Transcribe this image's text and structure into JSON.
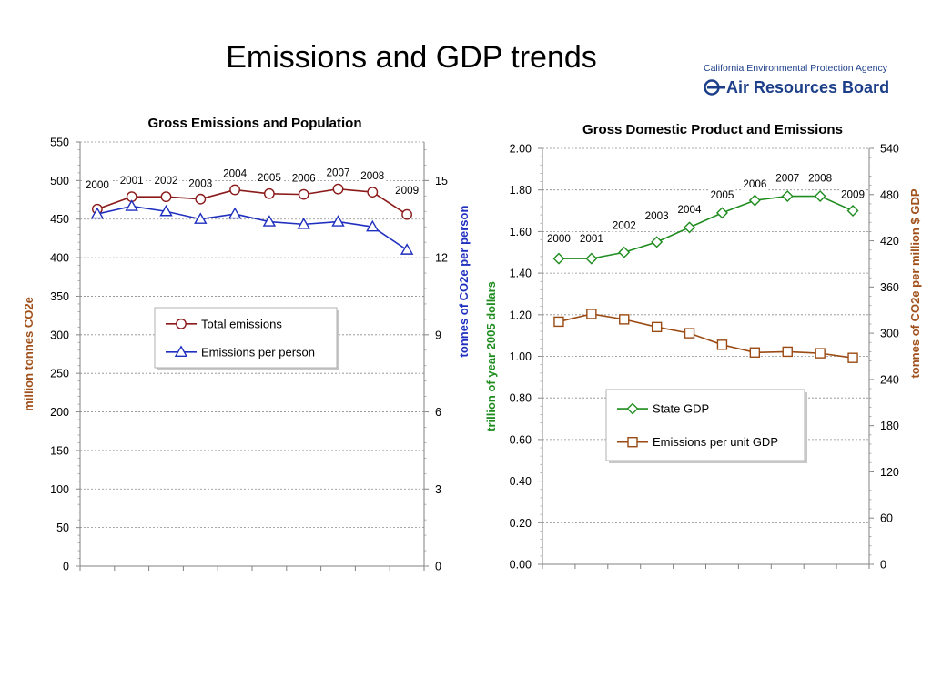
{
  "slide_title": "Emissions and GDP trends",
  "logo": {
    "agency": "California Environmental Protection Agency",
    "board": "Air Resources Board"
  },
  "chart_data": [
    {
      "type": "line",
      "title": "Gross Emissions and Population",
      "ylabel_left": "million tonnes CO2e",
      "ylabel_right": "tonnes of CO2e per person",
      "ylim_left": [
        0,
        550
      ],
      "yticks_left": [
        "0",
        "50",
        "100",
        "150",
        "200",
        "250",
        "300",
        "350",
        "400",
        "450",
        "500",
        "550"
      ],
      "ylim_right": [
        0,
        16.5
      ],
      "yticks_right": [
        "0",
        "3",
        "6",
        "9",
        "12",
        "15"
      ],
      "grid": true,
      "legend_position": "center",
      "point_labels": [
        "2000",
        "2001",
        "2002",
        "2003",
        "2004",
        "2005",
        "2006",
        "2007",
        "2008",
        "2009"
      ],
      "series": [
        {
          "name": "Total emissions",
          "axis": "left",
          "color": "#8b1a1a",
          "marker": "circle",
          "values": [
            463,
            479,
            479,
            476,
            488,
            483,
            482,
            489,
            485,
            456
          ]
        },
        {
          "name": "Emissions per person",
          "axis": "right",
          "color": "#1f2fbf",
          "marker": "triangle",
          "values": [
            13.7,
            14.0,
            13.8,
            13.5,
            13.7,
            13.4,
            13.3,
            13.4,
            13.2,
            12.3
          ]
        }
      ]
    },
    {
      "type": "line",
      "title": "Gross Domestic Product and Emissions",
      "ylabel_left": "trillion of year 2005 dollars",
      "ylabel_right": "tonnes of CO2e per million $ GDP",
      "ylim_left": [
        0,
        2.0
      ],
      "yticks_left": [
        "0.00",
        "0.20",
        "0.40",
        "0.60",
        "0.80",
        "1.00",
        "1.20",
        "1.40",
        "1.60",
        "1.80",
        "2.00"
      ],
      "ylim_right": [
        0,
        540
      ],
      "yticks_right": [
        "0",
        "60",
        "120",
        "180",
        "240",
        "300",
        "360",
        "420",
        "480",
        "540"
      ],
      "grid": true,
      "legend_position": "center-right",
      "point_labels": [
        "2000",
        "2001",
        "2002",
        "2003",
        "2004",
        "2005",
        "2006",
        "2007",
        "2008",
        "2009"
      ],
      "series": [
        {
          "name": "State GDP",
          "axis": "left",
          "color": "#1e8c1e",
          "marker": "diamond",
          "values": [
            1.47,
            1.47,
            1.5,
            1.55,
            1.62,
            1.69,
            1.75,
            1.77,
            1.77,
            1.7
          ]
        },
        {
          "name": "Emissions per unit GDP",
          "axis": "right",
          "color": "#9a4a12",
          "marker": "square",
          "values": [
            315,
            325,
            318,
            308,
            300,
            285,
            275,
            276,
            274,
            268
          ]
        }
      ]
    }
  ]
}
